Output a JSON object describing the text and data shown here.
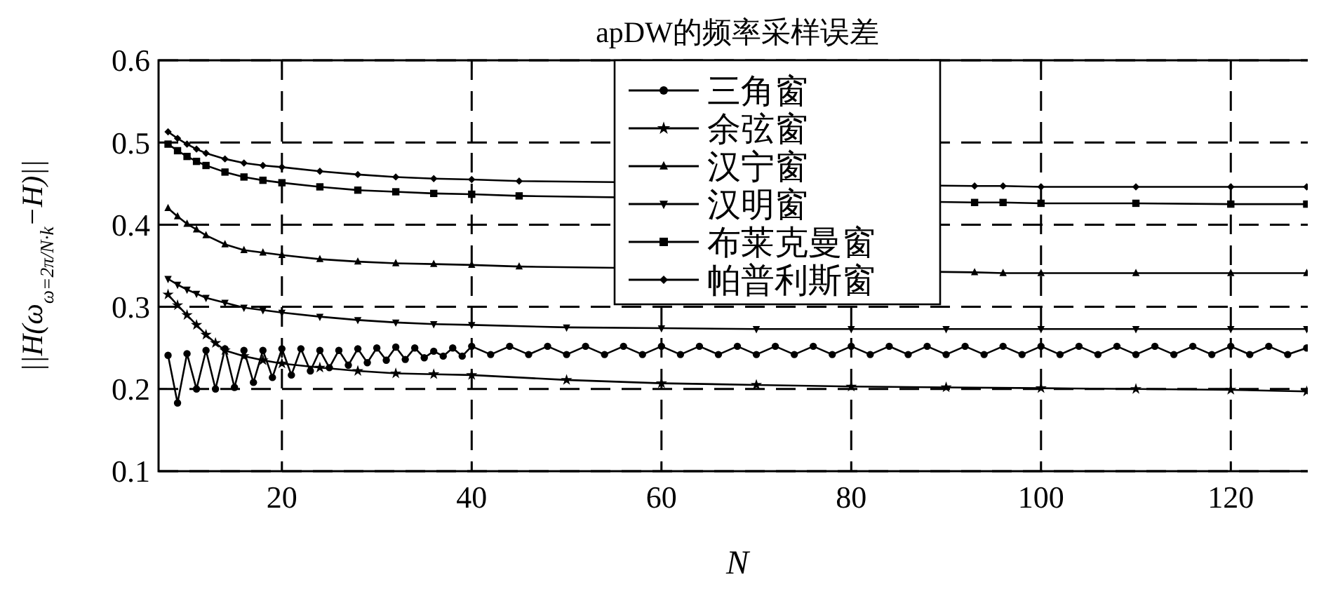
{
  "chart_data": {
    "type": "line",
    "title": "apDW的频率采样误差",
    "xlabel": "N",
    "ylabel": "||H(ω$_{ω=2π/N·k}$−H)||",
    "xlim": [
      7,
      129
    ],
    "xticks": [
      20,
      40,
      60,
      80,
      100,
      120
    ],
    "ylim": [
      0.1,
      0.6
    ],
    "yticks": [
      0.1,
      0.2,
      0.3,
      0.4,
      0.5,
      0.6
    ],
    "grid": true,
    "legend": "top",
    "line_style": "solid",
    "series": [
      {
        "name": "三角窗",
        "color": "#000000",
        "marker": "circle",
        "x": [
          8,
          9,
          10,
          11,
          12,
          13,
          14,
          15,
          16,
          17,
          18,
          19,
          20,
          21,
          22,
          23,
          24,
          25,
          26,
          27,
          28,
          29,
          30,
          31,
          32,
          33,
          34,
          35,
          36,
          37,
          38,
          39,
          40,
          42,
          44,
          46,
          48,
          50,
          52,
          54,
          56,
          58,
          60,
          62,
          64,
          66,
          68,
          70,
          72,
          74,
          76,
          78,
          80,
          82,
          84,
          86,
          88,
          90,
          92,
          94,
          96,
          98,
          100,
          102,
          104,
          106,
          108,
          110,
          112,
          114,
          116,
          118,
          120,
          122,
          124,
          126,
          128
        ],
        "values": [
          0.241,
          0.183,
          0.243,
          0.2,
          0.247,
          0.2,
          0.249,
          0.202,
          0.247,
          0.208,
          0.247,
          0.214,
          0.249,
          0.217,
          0.249,
          0.222,
          0.247,
          0.226,
          0.247,
          0.229,
          0.249,
          0.232,
          0.25,
          0.235,
          0.251,
          0.236,
          0.25,
          0.238,
          0.246,
          0.24,
          0.25,
          0.24,
          0.252,
          0.242,
          0.252,
          0.242,
          0.252,
          0.242,
          0.252,
          0.242,
          0.252,
          0.242,
          0.252,
          0.242,
          0.252,
          0.242,
          0.252,
          0.242,
          0.252,
          0.242,
          0.252,
          0.242,
          0.252,
          0.242,
          0.252,
          0.242,
          0.252,
          0.242,
          0.252,
          0.242,
          0.252,
          0.242,
          0.252,
          0.242,
          0.252,
          0.242,
          0.252,
          0.242,
          0.252,
          0.242,
          0.252,
          0.242,
          0.252,
          0.242,
          0.252,
          0.242,
          0.25
        ]
      },
      {
        "name": "余弦窗",
        "color": "#000000",
        "marker": "star",
        "x": [
          8,
          9,
          10,
          11,
          12,
          13,
          14,
          16,
          18,
          20,
          24,
          28,
          32,
          36,
          40,
          50,
          60,
          70,
          80,
          90,
          100,
          110,
          120,
          128
        ],
        "values": [
          0.315,
          0.302,
          0.29,
          0.278,
          0.266,
          0.256,
          0.247,
          0.24,
          0.235,
          0.231,
          0.226,
          0.222,
          0.219,
          0.218,
          0.217,
          0.211,
          0.207,
          0.205,
          0.203,
          0.202,
          0.201,
          0.2,
          0.199,
          0.197
        ]
      },
      {
        "name": "汉宁窗",
        "color": "#000000",
        "marker": "triangle",
        "x": [
          8,
          9,
          10,
          11,
          12,
          14,
          16,
          18,
          20,
          24,
          28,
          32,
          36,
          40,
          45,
          93,
          96,
          100,
          110,
          120,
          128
        ],
        "values": [
          0.42,
          0.41,
          0.401,
          0.394,
          0.387,
          0.376,
          0.369,
          0.366,
          0.363,
          0.358,
          0.355,
          0.353,
          0.352,
          0.351,
          0.349,
          0.342,
          0.341,
          0.341,
          0.341,
          0.341,
          0.341
        ]
      },
      {
        "name": "汉明窗",
        "color": "#000000",
        "marker": "triangle-down",
        "x": [
          8,
          9,
          10,
          11,
          12,
          14,
          16,
          18,
          20,
          24,
          28,
          32,
          36,
          40,
          50,
          60,
          70,
          80,
          90,
          100,
          110,
          120,
          128
        ],
        "values": [
          0.334,
          0.327,
          0.321,
          0.316,
          0.311,
          0.305,
          0.299,
          0.296,
          0.293,
          0.288,
          0.284,
          0.281,
          0.279,
          0.278,
          0.275,
          0.274,
          0.273,
          0.273,
          0.273,
          0.273,
          0.273,
          0.273,
          0.273
        ]
      },
      {
        "name": "布莱克曼窗",
        "color": "#000000",
        "marker": "square",
        "x": [
          8,
          9,
          10,
          11,
          12,
          14,
          16,
          18,
          20,
          24,
          28,
          32,
          36,
          40,
          45,
          93,
          96,
          100,
          110,
          120,
          128
        ],
        "values": [
          0.498,
          0.49,
          0.483,
          0.477,
          0.472,
          0.464,
          0.458,
          0.454,
          0.451,
          0.446,
          0.442,
          0.44,
          0.438,
          0.437,
          0.435,
          0.427,
          0.427,
          0.426,
          0.426,
          0.425,
          0.425
        ]
      },
      {
        "name": "帕普利斯窗",
        "color": "#000000",
        "marker": "diamond",
        "x": [
          8,
          9,
          10,
          11,
          12,
          14,
          16,
          18,
          20,
          24,
          28,
          32,
          36,
          40,
          45,
          93,
          96,
          100,
          110,
          120,
          128
        ],
        "values": [
          0.513,
          0.505,
          0.498,
          0.492,
          0.487,
          0.48,
          0.475,
          0.472,
          0.47,
          0.465,
          0.461,
          0.458,
          0.456,
          0.455,
          0.453,
          0.447,
          0.447,
          0.446,
          0.446,
          0.446,
          0.446
        ]
      }
    ]
  }
}
